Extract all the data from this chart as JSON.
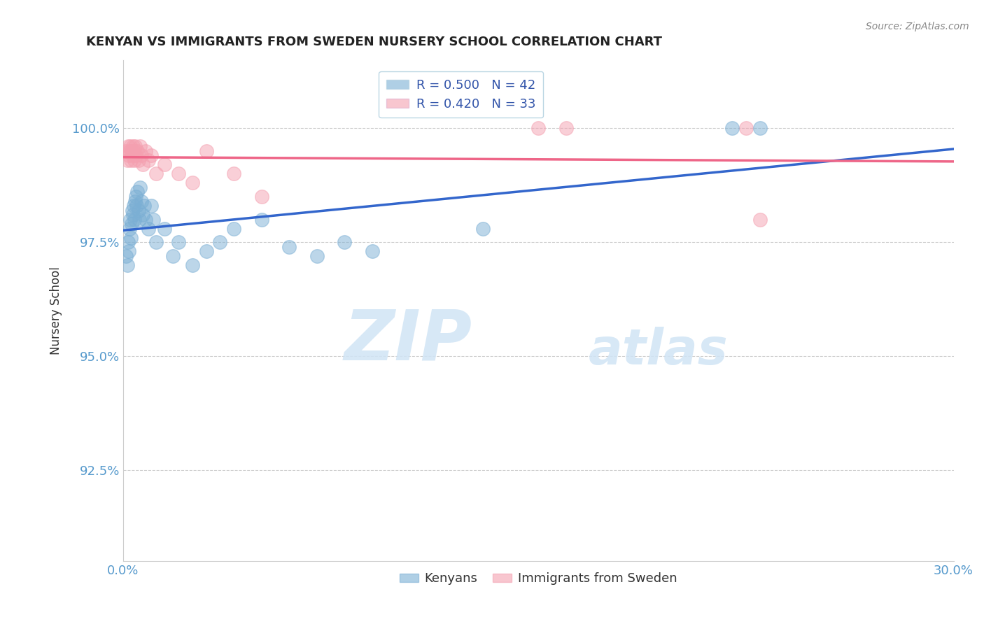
{
  "title": "KENYAN VS IMMIGRANTS FROM SWEDEN NURSERY SCHOOL CORRELATION CHART",
  "source": "Source: ZipAtlas.com",
  "ylabel": "Nursery School",
  "xlim": [
    0.0,
    30.0
  ],
  "ylim": [
    90.5,
    101.5
  ],
  "yticks": [
    92.5,
    95.0,
    97.5,
    100.0
  ],
  "ytick_labels": [
    "92.5%",
    "95.0%",
    "97.5%",
    "100.0%"
  ],
  "xticks": [
    0.0,
    5.0,
    10.0,
    15.0,
    20.0,
    25.0,
    30.0
  ],
  "blue_R": 0.5,
  "blue_N": 42,
  "pink_R": 0.42,
  "pink_N": 33,
  "blue_color": "#7BAFD4",
  "pink_color": "#F4A0B0",
  "blue_line_color": "#3366CC",
  "pink_line_color": "#EE6688",
  "legend_label_blue": "Kenyans",
  "legend_label_pink": "Immigrants from Sweden",
  "watermark_zip": "ZIP",
  "watermark_atlas": "atlas",
  "blue_x": [
    0.1,
    0.15,
    0.18,
    0.2,
    0.22,
    0.25,
    0.28,
    0.3,
    0.32,
    0.35,
    0.38,
    0.4,
    0.42,
    0.45,
    0.48,
    0.5,
    0.55,
    0.58,
    0.6,
    0.65,
    0.7,
    0.75,
    0.8,
    0.9,
    1.0,
    1.1,
    1.2,
    1.5,
    1.8,
    2.0,
    2.5,
    3.0,
    3.5,
    4.0,
    5.0,
    6.0,
    7.0,
    8.0,
    9.0,
    13.0,
    22.0,
    23.0
  ],
  "blue_y": [
    97.2,
    97.0,
    97.5,
    97.3,
    97.8,
    98.0,
    97.6,
    97.9,
    98.2,
    98.1,
    98.3,
    98.0,
    98.4,
    98.5,
    98.3,
    98.6,
    98.2,
    98.0,
    98.7,
    98.4,
    98.1,
    98.3,
    98.0,
    97.8,
    98.3,
    98.0,
    97.5,
    97.8,
    97.2,
    97.5,
    97.0,
    97.3,
    97.5,
    97.8,
    98.0,
    97.4,
    97.2,
    97.5,
    97.3,
    97.8,
    100.0,
    100.0
  ],
  "pink_x": [
    0.1,
    0.15,
    0.18,
    0.2,
    0.22,
    0.25,
    0.28,
    0.3,
    0.32,
    0.35,
    0.38,
    0.4,
    0.42,
    0.45,
    0.5,
    0.55,
    0.6,
    0.65,
    0.7,
    0.8,
    0.9,
    1.0,
    1.2,
    1.5,
    2.0,
    2.5,
    3.0,
    4.0,
    5.0,
    15.0,
    16.0,
    22.5,
    23.0
  ],
  "pink_y": [
    99.5,
    99.3,
    99.6,
    99.4,
    99.5,
    99.6,
    99.3,
    99.5,
    99.4,
    99.6,
    99.5,
    99.3,
    99.6,
    99.4,
    99.5,
    99.3,
    99.6,
    99.4,
    99.2,
    99.5,
    99.3,
    99.4,
    99.0,
    99.2,
    99.0,
    98.8,
    99.5,
    99.0,
    98.5,
    100.0,
    100.0,
    100.0,
    98.0
  ]
}
